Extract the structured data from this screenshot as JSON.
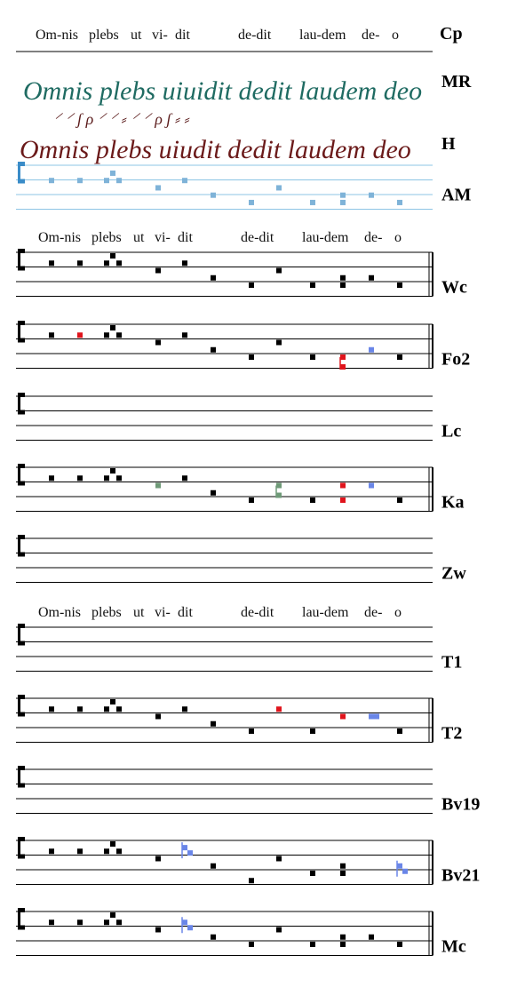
{
  "header": {
    "label": "Cp"
  },
  "lyric_lines": [
    [
      "Om-nis",
      "plebs",
      "ut",
      "vi-",
      "dit",
      "de-dit",
      "lau-dem",
      "de-",
      "o"
    ],
    [
      "Om-nis",
      "plebs",
      "ut",
      "vi-",
      "dit",
      "de-dit",
      "lau-dem",
      "de-",
      "o"
    ],
    [
      "Om-nis",
      "plebs",
      "ut",
      "vi-",
      "dit",
      "de-dit",
      "lau-dem",
      "de-",
      "o"
    ]
  ],
  "manuscripts": [
    {
      "label": "MR",
      "text": "Omnis plebs uiuidit dedit laudem deo"
    },
    {
      "label": "H",
      "text": "Omnis plebs uiudit dedit laudem deo"
    }
  ],
  "staves": [
    {
      "label": "AM"
    },
    {
      "label": "Wc"
    },
    {
      "label": "Fo2"
    },
    {
      "label": "Lc"
    },
    {
      "label": "Ka"
    },
    {
      "label": "Zw"
    },
    {
      "label": "T1"
    },
    {
      "label": "T2"
    },
    {
      "label": "Bv19"
    },
    {
      "label": "Bv21"
    },
    {
      "label": "Mc"
    }
  ]
}
